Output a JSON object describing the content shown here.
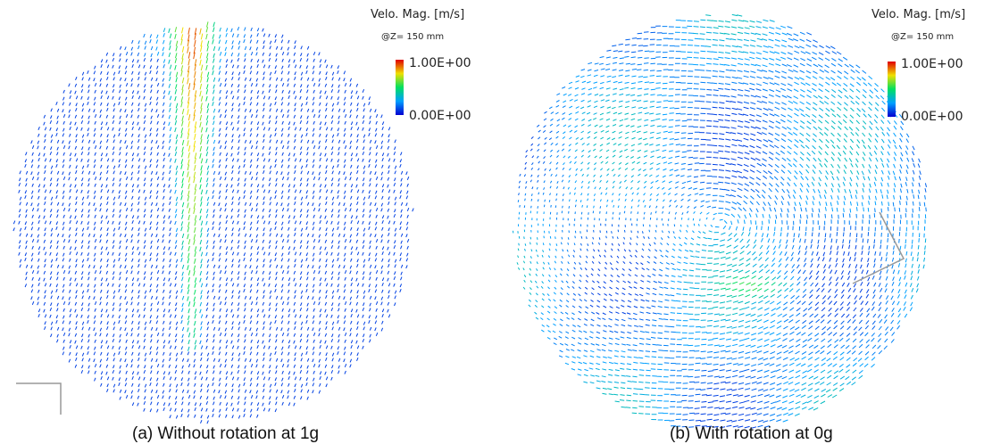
{
  "panels": [
    {
      "legend": {
        "title": "Velo. Mag. [m/s]",
        "subtitle": "@Z= 150 mm",
        "max_label": "1.00E+00",
        "min_label": "0.00E+00"
      },
      "caption": "(a) Without rotation at 1g"
    },
    {
      "legend": {
        "title": "Velo. Mag. [m/s]",
        "subtitle": "@Z= 150 mm",
        "max_label": "1.00E+00",
        "min_label": "0.00E+00"
      },
      "caption": "(b) With rotation at 0g"
    }
  ]
}
